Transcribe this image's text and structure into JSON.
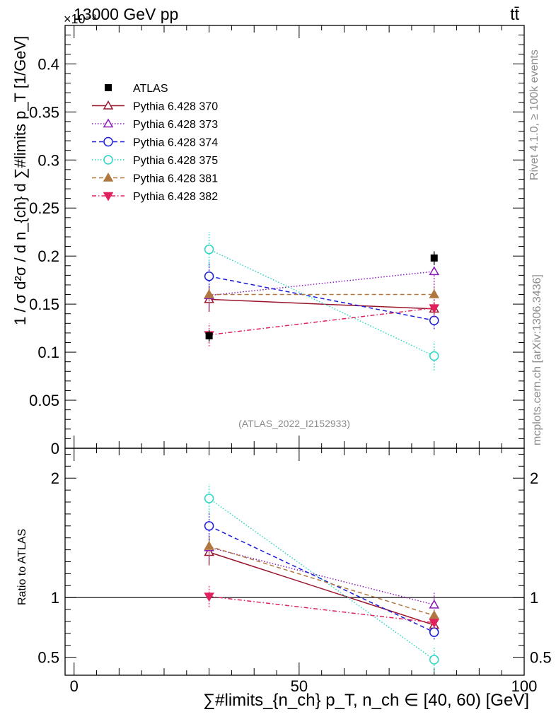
{
  "header": {
    "energy_label": "13000 GeV pp",
    "process_label": "tt̄",
    "exponent_label": "×10⁻³"
  },
  "side_labels": {
    "rivet": "Rivet 4.1.0, ≥ 100k events",
    "mcplots": "mcplots.cern.ch [arXiv:1306.3436]"
  },
  "watermark": "(ATLAS_2022_I2152933)",
  "axes": {
    "main_ylabel": "1 / σ d²σ / d n_{ch} d ∑#limits p_T [1/GeV]",
    "ratio_ylabel": "Ratio to ATLAS",
    "xlabel": "∑#limits_{n_ch} p_T, n_ch ∈ [40, 60) [GeV]"
  },
  "chart_data": {
    "type": "scatter",
    "xlim": [
      -2,
      100
    ],
    "main_ylim": [
      0,
      0.44
    ],
    "ratio_ylim": [
      0.35,
      2.25
    ],
    "x_ticks": [
      0,
      50,
      100
    ],
    "main_yticks": [
      0,
      0.05,
      0.1,
      0.15,
      0.2,
      0.25,
      0.3,
      0.35,
      0.4
    ],
    "main_ytick_labels": [
      "0",
      "0.05",
      "0.1",
      "0.15",
      "0.2",
      "0.25",
      "0.3",
      "0.35",
      "0.4"
    ],
    "ratio_yticks": [
      0.5,
      1,
      2
    ],
    "ratio_ytick_labels": [
      "0.5",
      "1",
      "2"
    ],
    "x_tick_labels": [
      "0",
      "50",
      "100"
    ],
    "x": [
      30,
      80
    ],
    "reference": {
      "name": "ATLAS",
      "values": [
        0.117,
        0.198
      ],
      "errors": [
        0.006,
        0.007
      ],
      "color": "#000000"
    },
    "series": [
      {
        "name": "Pythia 6.428 370",
        "values": [
          0.155,
          0.145
        ],
        "errors": [
          0.013,
          0.006
        ],
        "ratio": [
          1.38,
          0.77
        ],
        "ratio_errors": [
          0.11,
          0.05
        ],
        "color": "#99152d",
        "dash": "",
        "marker": "triangle-open"
      },
      {
        "name": "Pythia 6.428 373",
        "values": [
          0.159,
          0.184
        ],
        "errors": [
          0.012,
          0.02
        ],
        "ratio": [
          1.42,
          0.94
        ],
        "ratio_errors": [
          0.1,
          0.1
        ],
        "color": "#8a1ab5",
        "dash": "1.5,2.5",
        "marker": "triangle-open"
      },
      {
        "name": "Pythia 6.428 374",
        "values": [
          0.179,
          0.133
        ],
        "errors": [
          0.015,
          0.009
        ],
        "ratio": [
          1.6,
          0.71
        ],
        "ratio_errors": [
          0.12,
          0.06
        ],
        "color": "#1a1adb",
        "dash": "6,4",
        "marker": "circle-open"
      },
      {
        "name": "Pythia 6.428 375",
        "values": [
          0.207,
          0.096
        ],
        "errors": [
          0.018,
          0.015
        ],
        "ratio": [
          1.83,
          0.48
        ],
        "ratio_errors": [
          0.12,
          0.1
        ],
        "color": "#2ad6c4",
        "dash": "1.5,2.5",
        "marker": "circle-open"
      },
      {
        "name": "Pythia 6.428 381",
        "values": [
          0.16,
          0.16
        ],
        "errors": [
          0.009,
          0.007
        ],
        "ratio": [
          1.43,
          0.85
        ],
        "ratio_errors": [
          0.08,
          0.05
        ],
        "color": "#b07840",
        "dash": "6,4",
        "marker": "triangle-filled"
      },
      {
        "name": "Pythia 6.428 382",
        "values": [
          0.118,
          0.146
        ],
        "errors": [
          0.012,
          0.01
        ],
        "ratio": [
          1.01,
          0.79
        ],
        "ratio_errors": [
          0.09,
          0.05
        ],
        "color": "#e0215d",
        "dash": "6,3,1.5,3",
        "marker": "triangle-down-filled"
      }
    ]
  }
}
